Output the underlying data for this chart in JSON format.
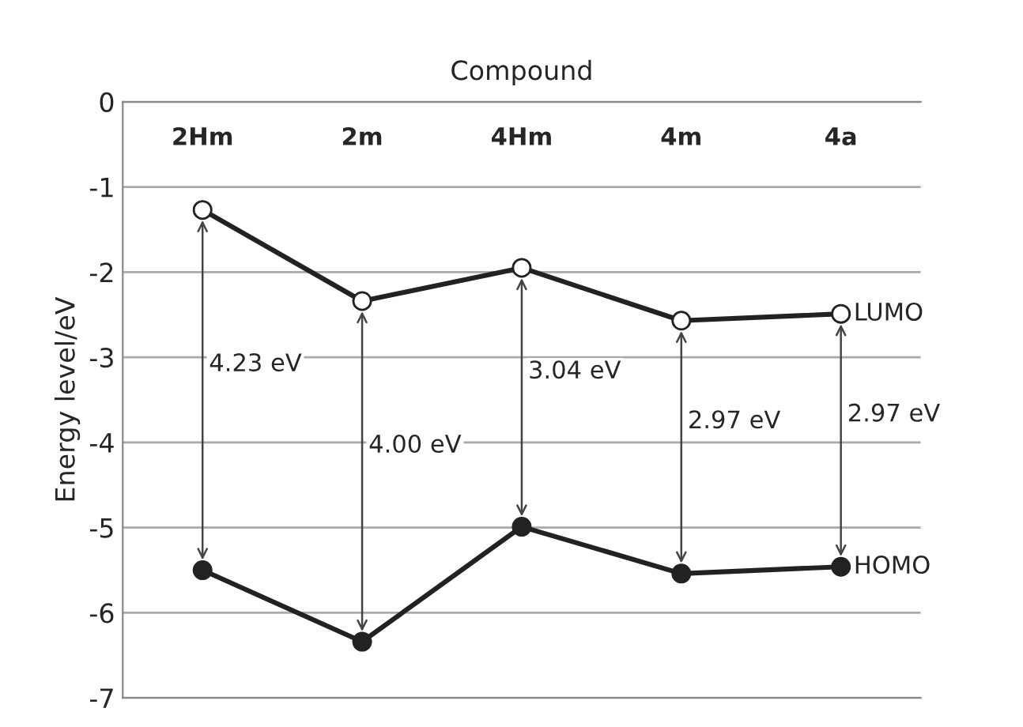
{
  "chart_data": {
    "type": "line",
    "xlabel": "Compound",
    "ylabel": "Energy level/eV",
    "categories": [
      "2Hm",
      "2m",
      "4Hm",
      "4m",
      "4a"
    ],
    "series": [
      {
        "name": "LUMO",
        "color": "#222222",
        "values": [
          -1.27,
          -2.34,
          -1.95,
          -2.57,
          -2.49
        ]
      },
      {
        "name": "HOMO",
        "color": "#222222",
        "values": [
          -5.5,
          -6.34,
          -4.99,
          -5.54,
          -5.46
        ]
      }
    ],
    "ylim": [
      -7,
      0
    ],
    "yticks": [
      0,
      -1,
      -2,
      -3,
      -4,
      -5,
      -6,
      -7
    ],
    "grid": "y",
    "marker": "circle",
    "line_style": "solid",
    "legend": false,
    "annotations": [
      "4.23 eV",
      "4.00 eV",
      "3.04 eV",
      "2.97 eV",
      "2.97 eV"
    ]
  }
}
